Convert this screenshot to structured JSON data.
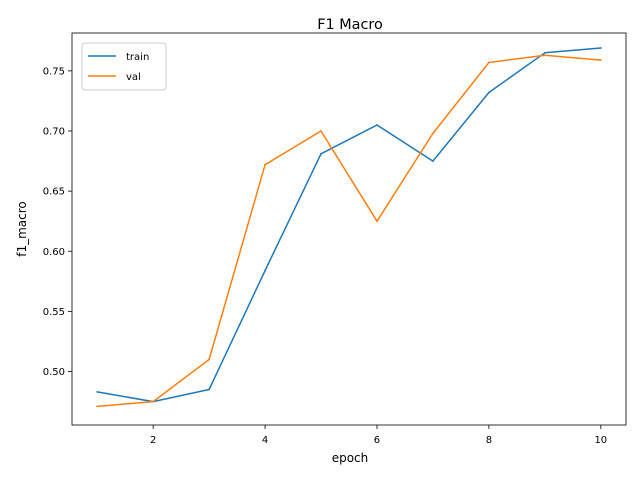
{
  "chart_data": {
    "type": "line",
    "title": "F1 Macro",
    "xlabel": "epoch",
    "ylabel": "f1_macro",
    "x": [
      1,
      2,
      3,
      4,
      5,
      6,
      7,
      8,
      9,
      10
    ],
    "xlim": [
      0.55,
      10.45
    ],
    "ylim": [
      0.4555,
      0.7815
    ],
    "xticks": [
      2,
      4,
      6,
      8,
      10
    ],
    "yticks": [
      0.5,
      0.55,
      0.6,
      0.65,
      0.7,
      0.75
    ],
    "grid": false,
    "legend_position": "top-left",
    "series": [
      {
        "name": "train",
        "color": "#1f77b4",
        "values": [
          0.483,
          0.475,
          0.485,
          0.584,
          0.681,
          0.705,
          0.675,
          0.732,
          0.765,
          0.769
        ]
      },
      {
        "name": "val",
        "color": "#ff7f0e",
        "values": [
          0.471,
          0.475,
          0.51,
          0.672,
          0.7,
          0.625,
          0.698,
          0.757,
          0.763,
          0.759
        ]
      }
    ]
  }
}
